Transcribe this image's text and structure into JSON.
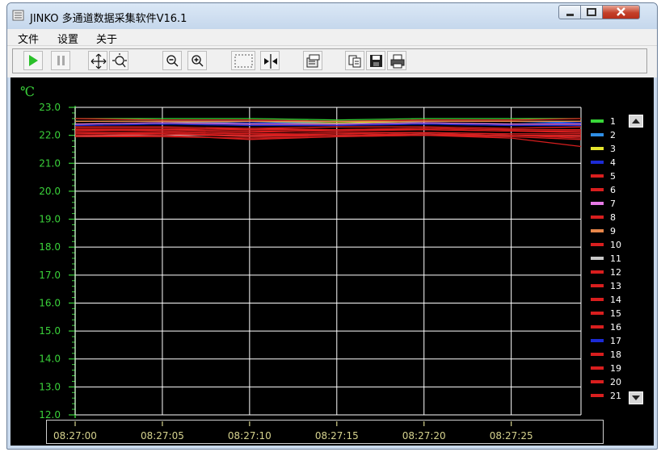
{
  "window": {
    "title": "JINKO 多通道数据采集软件V16.1"
  },
  "menu": {
    "items": [
      "文件",
      "设置",
      "关于"
    ]
  },
  "toolbar": {
    "buttons": [
      "play-icon",
      "pause-icon",
      "pan-icon",
      "zoom-area-icon",
      "zoom-out-icon",
      "zoom-in-icon",
      "select-rect-icon",
      "split-cursor-icon",
      "properties-icon",
      "copy-icon",
      "save-icon",
      "print-icon"
    ]
  },
  "colors": {
    "axis_text": "#3ad23a",
    "time_text": "#d6d38e",
    "grid": "#ffffff",
    "background": "#000000"
  },
  "chart_data": {
    "type": "line",
    "unit_label": "℃",
    "ylim": [
      12.0,
      23.0
    ],
    "y_ticks": [
      "23.0",
      "22.0",
      "21.0",
      "20.0",
      "19.0",
      "18.0",
      "17.0",
      "16.0",
      "15.0",
      "14.0",
      "13.0",
      "12.0"
    ],
    "x_ticks": [
      "08:27:00",
      "08:27:05",
      "08:27:10",
      "08:27:15",
      "08:27:20",
      "08:27:25"
    ],
    "x_range_seconds": [
      0,
      29
    ],
    "grid": true,
    "legend_placement": "right",
    "series": [
      {
        "name": "1",
        "color": "#39d639",
        "values": [
          22.6,
          22.6,
          22.6,
          22.55,
          22.6,
          22.6,
          22.6
        ]
      },
      {
        "name": "2",
        "color": "#2f8fe6",
        "values": [
          22.5,
          22.5,
          22.5,
          22.45,
          22.5,
          22.5,
          22.45
        ]
      },
      {
        "name": "3",
        "color": "#e6e62e",
        "values": [
          22.5,
          22.5,
          22.45,
          22.45,
          22.5,
          22.5,
          22.5
        ]
      },
      {
        "name": "4",
        "color": "#1c2bd6",
        "values": [
          22.4,
          22.45,
          22.45,
          22.4,
          22.45,
          22.4,
          22.45
        ]
      },
      {
        "name": "5",
        "color": "#d81e1e",
        "values": [
          22.6,
          22.55,
          22.55,
          22.5,
          22.55,
          22.55,
          22.6
        ]
      },
      {
        "name": "6",
        "color": "#d81e1e",
        "values": [
          22.2,
          22.15,
          22.1,
          22.2,
          22.25,
          22.2,
          22.2
        ]
      },
      {
        "name": "7",
        "color": "#e67ae6",
        "values": [
          22.4,
          22.45,
          22.4,
          22.4,
          22.45,
          22.4,
          22.4
        ]
      },
      {
        "name": "8",
        "color": "#d81e1e",
        "values": [
          22.1,
          22.05,
          22.0,
          22.05,
          22.1,
          22.05,
          22.05
        ]
      },
      {
        "name": "9",
        "color": "#e6864a",
        "values": [
          22.5,
          22.5,
          22.5,
          22.5,
          22.5,
          22.5,
          22.5
        ]
      },
      {
        "name": "10",
        "color": "#d81e1e",
        "values": [
          22.15,
          22.2,
          22.25,
          22.2,
          22.2,
          22.15,
          22.15
        ]
      },
      {
        "name": "11",
        "color": "#c8c8c8",
        "values": [
          22.0,
          22.0,
          22.0,
          22.0,
          22.05,
          22.0,
          22.0
        ]
      },
      {
        "name": "12",
        "color": "#d81e1e",
        "values": [
          21.95,
          22.0,
          21.85,
          21.95,
          22.0,
          21.9,
          21.6
        ]
      },
      {
        "name": "13",
        "color": "#d81e1e",
        "values": [
          22.1,
          22.05,
          21.95,
          22.0,
          22.05,
          22.0,
          21.9
        ]
      },
      {
        "name": "14",
        "color": "#d81e1e",
        "values": [
          22.3,
          22.3,
          22.25,
          22.3,
          22.3,
          22.25,
          22.3
        ]
      },
      {
        "name": "15",
        "color": "#d81e1e",
        "values": [
          22.05,
          22.1,
          22.05,
          22.0,
          22.05,
          22.0,
          21.95
        ]
      },
      {
        "name": "16",
        "color": "#d81e1e",
        "values": [
          22.2,
          22.2,
          22.15,
          22.15,
          22.2,
          22.15,
          22.1
        ]
      },
      {
        "name": "17",
        "color": "#1c2bd6",
        "values": [
          22.35,
          22.4,
          22.35,
          22.35,
          22.4,
          22.35,
          22.35
        ]
      },
      {
        "name": "18",
        "color": "#d81e1e",
        "values": [
          21.95,
          21.95,
          21.9,
          21.95,
          22.0,
          21.95,
          21.85
        ]
      },
      {
        "name": "19",
        "color": "#d81e1e",
        "values": [
          22.25,
          22.25,
          22.2,
          22.2,
          22.25,
          22.2,
          22.2
        ]
      },
      {
        "name": "20",
        "color": "#d81e1e",
        "values": [
          22.0,
          22.05,
          22.0,
          22.0,
          22.0,
          22.0,
          22.0
        ]
      },
      {
        "name": "21",
        "color": "#d81e1e",
        "values": [
          22.1,
          22.1,
          22.05,
          22.1,
          22.1,
          22.05,
          22.05
        ]
      }
    ],
    "x": [
      0,
      5,
      10,
      15,
      20,
      25,
      29
    ]
  }
}
